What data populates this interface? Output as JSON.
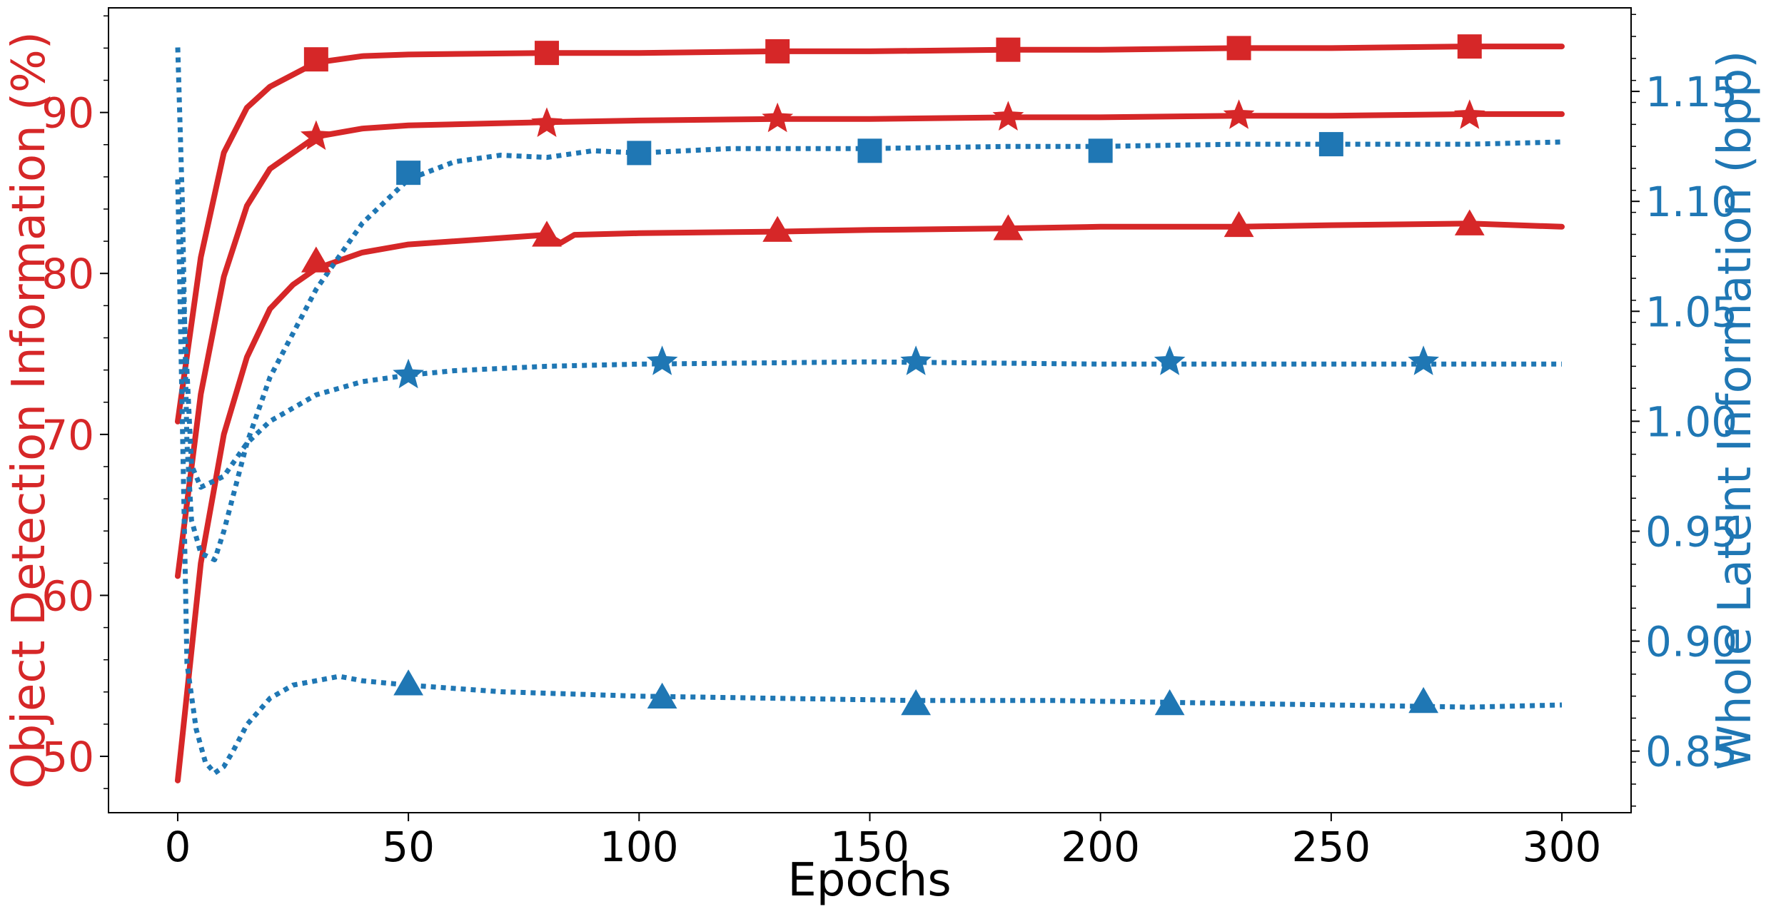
{
  "chart_data": {
    "type": "line",
    "xlabel": "Epochs",
    "ylabel_left": "Object Detection Information (%)",
    "ylabel_right": "Whole Latent Information (bpp)",
    "xlim": [
      -15,
      315
    ],
    "ylim_left": [
      46.5,
      96.5
    ],
    "ylim_right": [
      0.822,
      1.188
    ],
    "x_ticks": [
      0,
      50,
      100,
      150,
      200,
      250,
      300
    ],
    "y_left_ticks": [
      50,
      60,
      70,
      80,
      90
    ],
    "y_right_ticks": [
      0.85,
      0.9,
      0.95,
      1.0,
      1.05,
      1.1,
      1.15
    ],
    "colors": {
      "left": "#d62728",
      "right": "#1f77b4",
      "axis": "#000000"
    },
    "grid": false,
    "legend": "none",
    "series": [
      {
        "axis": "left",
        "style": "solid",
        "marker": "square",
        "x": [
          0,
          5,
          10,
          15,
          20,
          30,
          40,
          50,
          80,
          100,
          130,
          150,
          180,
          200,
          230,
          250,
          280,
          300
        ],
        "y": [
          70.8,
          81.0,
          87.5,
          90.3,
          91.6,
          93.1,
          93.5,
          93.6,
          93.7,
          93.7,
          93.8,
          93.8,
          93.9,
          93.9,
          94.0,
          94.0,
          94.1,
          94.1
        ],
        "marker_x": [
          30,
          80,
          130,
          180,
          230,
          280
        ],
        "marker_y": [
          93.3,
          93.7,
          93.8,
          93.9,
          94.0,
          94.1
        ]
      },
      {
        "axis": "left",
        "style": "solid",
        "marker": "star",
        "x": [
          0,
          5,
          10,
          15,
          20,
          30,
          40,
          50,
          80,
          100,
          130,
          150,
          180,
          200,
          230,
          250,
          280,
          300
        ],
        "y": [
          61.2,
          72.5,
          79.8,
          84.2,
          86.5,
          88.5,
          89.0,
          89.2,
          89.4,
          89.5,
          89.6,
          89.6,
          89.7,
          89.7,
          89.8,
          89.8,
          89.9,
          89.9
        ],
        "marker_x": [
          30,
          80,
          130,
          180,
          230,
          280
        ],
        "marker_y": [
          88.5,
          89.3,
          89.6,
          89.7,
          89.8,
          89.8
        ]
      },
      {
        "axis": "left",
        "style": "solid",
        "marker": "triangle",
        "x": [
          0,
          5,
          10,
          15,
          20,
          25,
          30,
          40,
          50,
          80,
          83,
          86,
          100,
          130,
          150,
          180,
          200,
          230,
          250,
          280,
          300
        ],
        "y": [
          48.5,
          62.0,
          70.0,
          74.8,
          77.8,
          79.3,
          80.3,
          81.3,
          81.8,
          82.4,
          81.9,
          82.4,
          82.5,
          82.6,
          82.7,
          82.8,
          82.9,
          82.9,
          83.0,
          83.1,
          82.9
        ],
        "marker_x": [
          30,
          80,
          130,
          180,
          230,
          280
        ],
        "marker_y": [
          80.7,
          82.3,
          82.6,
          82.7,
          82.9,
          83.0
        ]
      },
      {
        "axis": "right",
        "style": "dotted",
        "marker": "square",
        "x": [
          0,
          1,
          2,
          3,
          5,
          8,
          10,
          15,
          20,
          25,
          30,
          40,
          50,
          60,
          70,
          80,
          90,
          100,
          120,
          150,
          180,
          200,
          230,
          250,
          280,
          300
        ],
        "y": [
          1.17,
          1.1,
          0.99,
          0.955,
          0.94,
          0.937,
          0.95,
          0.99,
          1.02,
          1.04,
          1.06,
          1.09,
          1.11,
          1.118,
          1.121,
          1.12,
          1.123,
          1.122,
          1.124,
          1.124,
          1.125,
          1.125,
          1.126,
          1.126,
          1.126,
          1.127
        ],
        "marker_x": [
          50,
          100,
          150,
          200,
          250
        ],
        "marker_y": [
          1.113,
          1.122,
          1.123,
          1.123,
          1.126
        ]
      },
      {
        "axis": "right",
        "style": "dotted",
        "marker": "star",
        "x": [
          0,
          3,
          5,
          10,
          15,
          20,
          30,
          40,
          50,
          60,
          70,
          80,
          100,
          150,
          200,
          250,
          300
        ],
        "y": [
          1.11,
          0.98,
          0.97,
          0.975,
          0.99,
          1.0,
          1.012,
          1.018,
          1.021,
          1.023,
          1.024,
          1.025,
          1.026,
          1.027,
          1.026,
          1.026,
          1.026
        ],
        "marker_x": [
          50,
          105,
          160,
          215,
          270
        ],
        "marker_y": [
          1.021,
          1.027,
          1.027,
          1.027,
          1.027
        ]
      },
      {
        "axis": "right",
        "style": "dotted",
        "marker": "triangle",
        "x": [
          0,
          2,
          4,
          6,
          8,
          10,
          12,
          15,
          20,
          25,
          30,
          35,
          40,
          50,
          70,
          100,
          130,
          160,
          190,
          220,
          250,
          280,
          300
        ],
        "y": [
          1.11,
          0.89,
          0.86,
          0.845,
          0.84,
          0.843,
          0.85,
          0.862,
          0.874,
          0.88,
          0.882,
          0.884,
          0.882,
          0.88,
          0.877,
          0.875,
          0.874,
          0.873,
          0.873,
          0.872,
          0.871,
          0.87,
          0.871
        ],
        "marker_x": [
          50,
          105,
          160,
          215,
          270
        ],
        "marker_y": [
          0.88,
          0.874,
          0.871,
          0.871,
          0.872
        ]
      }
    ]
  }
}
